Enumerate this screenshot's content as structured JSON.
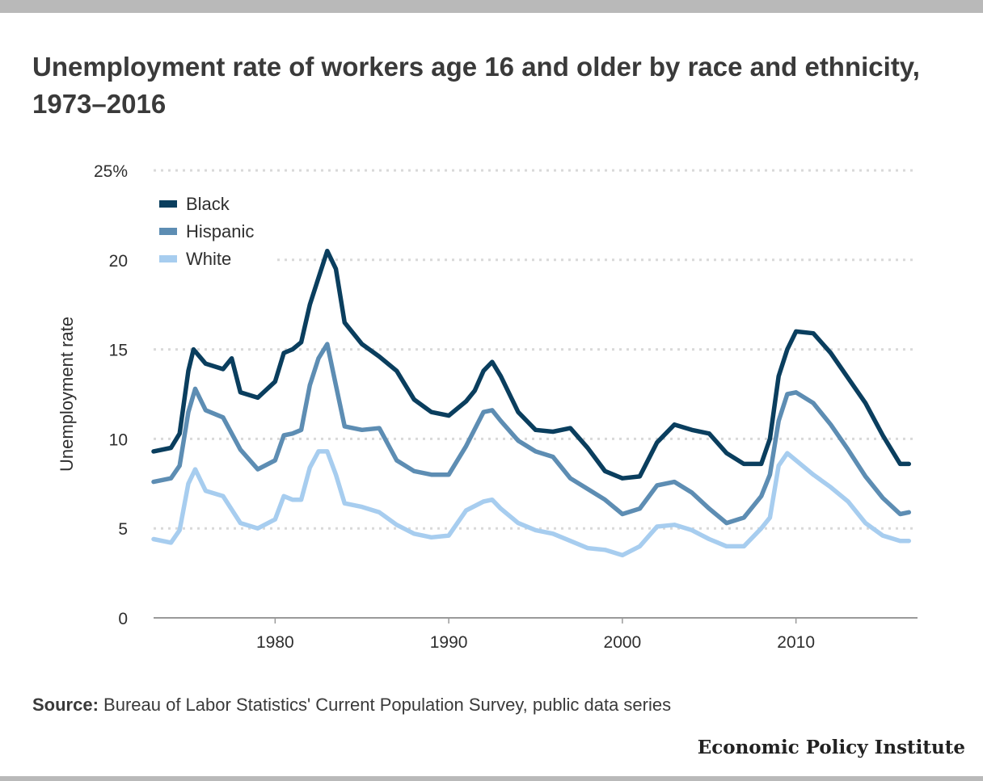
{
  "title": "Unemployment rate of workers age 16 and older by race and ethnicity, 1973–2016",
  "source": {
    "label": "Source:",
    "text": "Bureau of Labor Statistics' Current Population Survey, public data series"
  },
  "brand": "Economic Policy Institute",
  "colors": {
    "black": "#0a3e5e",
    "hispanic": "#5d8db3",
    "white": "#a7cdef",
    "grid": "#d9d9d9",
    "axis": "#9a9a9a"
  },
  "chart_data": {
    "type": "line",
    "ylabel": "Unemployment rate",
    "xlabel": "",
    "xlim": [
      1973,
      2017
    ],
    "ylim": [
      0,
      25
    ],
    "x_ticks": [
      1980,
      1990,
      2000,
      2010
    ],
    "y_ticks": [
      0,
      5,
      10,
      15,
      20,
      25
    ],
    "y_tick_labels": [
      "0",
      "5",
      "10",
      "15",
      "20",
      "25%"
    ],
    "legend_position": "top-left",
    "grid": true,
    "series": [
      {
        "name": "Black",
        "x": [
          1973,
          1974,
          1974.5,
          1975,
          1975.3,
          1976,
          1977,
          1977.5,
          1978,
          1979,
          1980,
          1980.5,
          1981,
          1981.5,
          1982,
          1982.5,
          1983,
          1983.5,
          1984,
          1985,
          1986,
          1987,
          1988,
          1989,
          1990,
          1991,
          1991.5,
          1992,
          1992.5,
          1993,
          1994,
          1995,
          1996,
          1997,
          1998,
          1999,
          2000,
          2001,
          2002,
          2003,
          2004,
          2005,
          2006,
          2007,
          2008,
          2008.5,
          2009,
          2009.5,
          2010,
          2011,
          2012,
          2013,
          2014,
          2015,
          2016,
          2016.5
        ],
        "y": [
          9.3,
          9.5,
          10.3,
          13.8,
          15.0,
          14.2,
          13.9,
          14.5,
          12.6,
          12.3,
          13.2,
          14.8,
          15.0,
          15.4,
          17.5,
          19.0,
          20.5,
          19.5,
          16.5,
          15.3,
          14.6,
          13.8,
          12.2,
          11.5,
          11.3,
          12.1,
          12.7,
          13.8,
          14.3,
          13.5,
          11.5,
          10.5,
          10.4,
          10.6,
          9.5,
          8.2,
          7.8,
          7.9,
          9.8,
          10.8,
          10.5,
          10.3,
          9.2,
          8.6,
          8.6,
          10.0,
          13.5,
          15.0,
          16.0,
          15.9,
          14.8,
          13.4,
          12.0,
          10.2,
          8.6,
          8.6
        ]
      },
      {
        "name": "Hispanic",
        "x": [
          1973,
          1974,
          1974.5,
          1975,
          1975.4,
          1976,
          1977,
          1978,
          1979,
          1980,
          1980.5,
          1981,
          1981.5,
          1982,
          1982.5,
          1983,
          1983.5,
          1984,
          1985,
          1986,
          1987,
          1988,
          1989,
          1990,
          1991,
          1992,
          1992.5,
          1993,
          1994,
          1995,
          1996,
          1997,
          1998,
          1999,
          2000,
          2001,
          2002,
          2003,
          2004,
          2005,
          2006,
          2007,
          2008,
          2008.5,
          2009,
          2009.5,
          2010,
          2011,
          2012,
          2013,
          2014,
          2015,
          2016,
          2016.5
        ],
        "y": [
          7.6,
          7.8,
          8.5,
          11.5,
          12.8,
          11.6,
          11.2,
          9.4,
          8.3,
          8.8,
          10.2,
          10.3,
          10.5,
          13.0,
          14.5,
          15.3,
          13.0,
          10.7,
          10.5,
          10.6,
          8.8,
          8.2,
          8.0,
          8.0,
          9.6,
          11.5,
          11.6,
          11.0,
          9.9,
          9.3,
          9.0,
          7.8,
          7.2,
          6.6,
          5.8,
          6.1,
          7.4,
          7.6,
          7.0,
          6.1,
          5.3,
          5.6,
          6.8,
          8.0,
          11.0,
          12.5,
          12.6,
          12.0,
          10.8,
          9.4,
          7.9,
          6.7,
          5.8,
          5.9
        ]
      },
      {
        "name": "White",
        "x": [
          1973,
          1974,
          1974.5,
          1975,
          1975.4,
          1976,
          1977,
          1978,
          1979,
          1980,
          1980.5,
          1981,
          1981.5,
          1982,
          1982.5,
          1983,
          1983.5,
          1984,
          1985,
          1986,
          1987,
          1988,
          1989,
          1990,
          1991,
          1992,
          1992.5,
          1993,
          1994,
          1995,
          1996,
          1997,
          1998,
          1999,
          2000,
          2001,
          2002,
          2003,
          2004,
          2005,
          2006,
          2007,
          2008,
          2008.5,
          2009,
          2009.5,
          2010,
          2011,
          2012,
          2013,
          2014,
          2015,
          2016,
          2016.5
        ],
        "y": [
          4.4,
          4.2,
          4.9,
          7.5,
          8.3,
          7.1,
          6.8,
          5.3,
          5.0,
          5.5,
          6.8,
          6.6,
          6.6,
          8.4,
          9.3,
          9.3,
          8.0,
          6.4,
          6.2,
          5.9,
          5.2,
          4.7,
          4.5,
          4.6,
          6.0,
          6.5,
          6.6,
          6.1,
          5.3,
          4.9,
          4.7,
          4.3,
          3.9,
          3.8,
          3.5,
          4.0,
          5.1,
          5.2,
          4.9,
          4.4,
          4.0,
          4.0,
          5.0,
          5.6,
          8.5,
          9.2,
          8.8,
          8.0,
          7.3,
          6.5,
          5.3,
          4.6,
          4.3,
          4.3
        ]
      }
    ]
  }
}
